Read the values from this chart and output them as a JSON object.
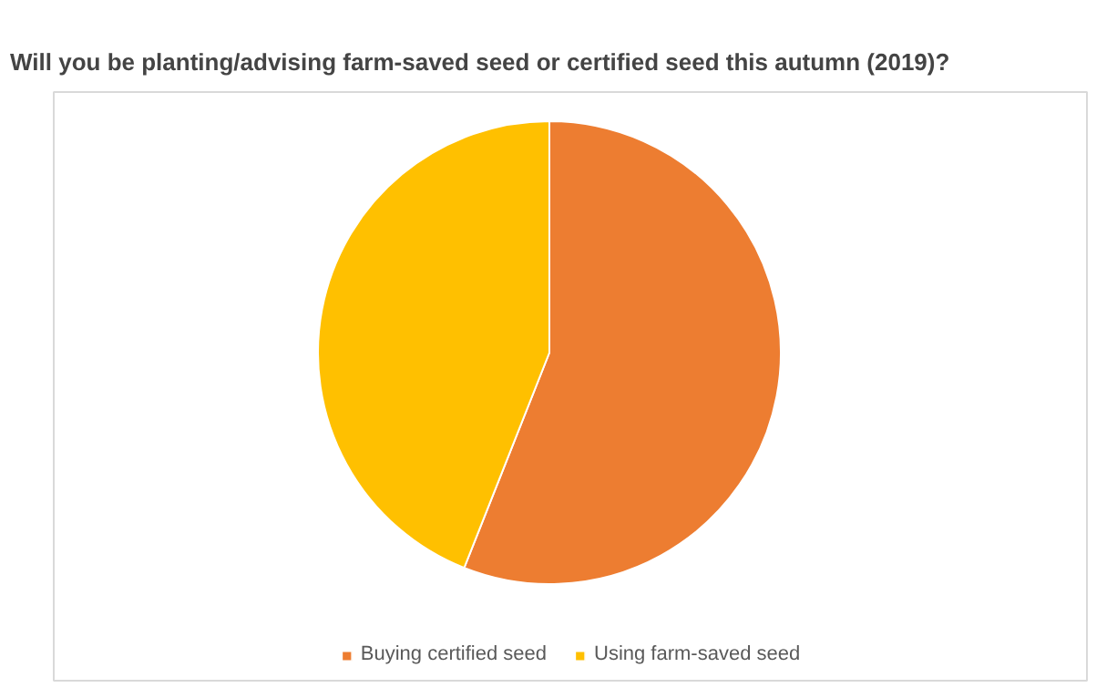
{
  "chart_data": {
    "type": "pie",
    "title": "Will you be planting/advising farm-saved seed or certified seed this autumn (2019)?",
    "categories": [
      "Buying certified seed",
      "Using farm-saved seed"
    ],
    "values": [
      56,
      44
    ],
    "colors": [
      "#ed7d31",
      "#ffc000"
    ],
    "legend": "bottom"
  }
}
